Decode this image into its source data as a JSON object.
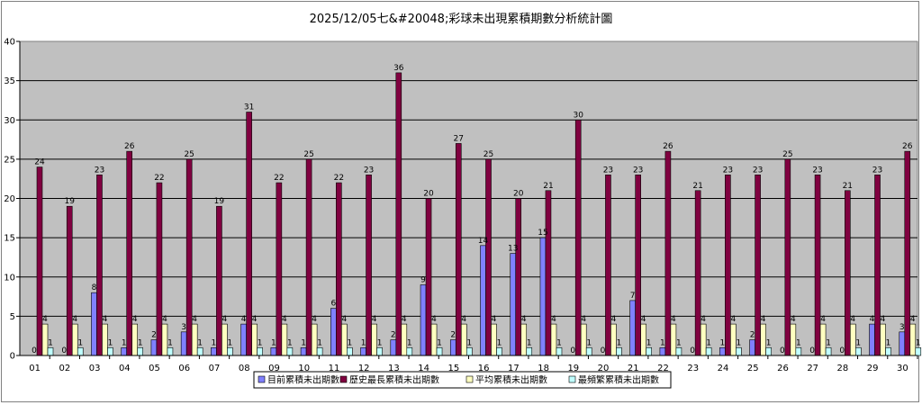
{
  "chart_data": {
    "type": "bar",
    "title": "2025/12/05七&#20048;彩球未出現累積期數分析統計圖",
    "xlabel": "",
    "ylabel": "",
    "ylim": [
      0,
      40
    ],
    "yticks": [
      0,
      5,
      10,
      15,
      20,
      25,
      30,
      35,
      40
    ],
    "grid": true,
    "legend_position": "bottom",
    "categories": [
      "01",
      "02",
      "03",
      "04",
      "05",
      "06",
      "07",
      "08",
      "09",
      "10",
      "11",
      "12",
      "13",
      "14",
      "15",
      "16",
      "17",
      "18",
      "19",
      "20",
      "21",
      "22",
      "23",
      "24",
      "25",
      "26",
      "27",
      "28",
      "29",
      "30"
    ],
    "series": [
      {
        "name": "目前累積未出期數",
        "color": "#8080ff",
        "values": [
          0,
          0,
          8,
          1,
          2,
          3,
          1,
          4,
          1,
          1,
          6,
          1,
          2,
          9,
          2,
          14,
          13,
          15,
          0,
          0,
          7,
          1,
          0,
          1,
          2,
          0,
          0,
          0,
          4,
          3
        ]
      },
      {
        "name": "歷史最長累積未出期數",
        "color": "#800040",
        "values": [
          24,
          19,
          23,
          26,
          22,
          25,
          19,
          31,
          22,
          25,
          22,
          23,
          36,
          20,
          27,
          25,
          20,
          21,
          30,
          23,
          23,
          26,
          21,
          23,
          23,
          25,
          23,
          21,
          23,
          26
        ]
      },
      {
        "name": "平均累積未出期數",
        "color": "#ffffc0",
        "values": [
          4,
          4,
          4,
          4,
          4,
          4,
          4,
          4,
          4,
          4,
          4,
          4,
          4,
          4,
          4,
          4,
          4,
          4,
          4,
          4,
          4,
          4,
          4,
          4,
          4,
          4,
          4,
          4,
          4,
          4
        ]
      },
      {
        "name": "最頻繁累積未出期數",
        "color": "#c0ffff",
        "values": [
          1,
          1,
          1,
          1,
          1,
          1,
          1,
          1,
          1,
          1,
          1,
          1,
          1,
          1,
          1,
          1,
          1,
          1,
          1,
          1,
          1,
          1,
          1,
          1,
          1,
          1,
          1,
          1,
          1,
          1
        ]
      }
    ]
  }
}
